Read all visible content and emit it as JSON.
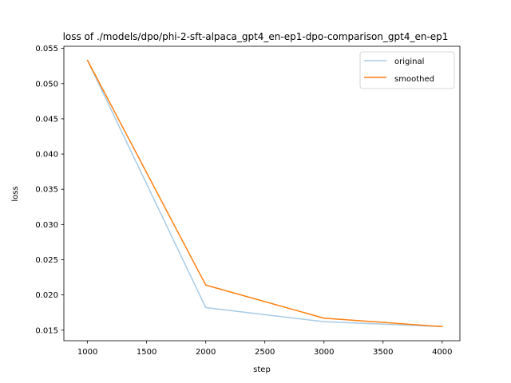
{
  "chart_data": {
    "type": "line",
    "title": "loss of ./models/dpo/phi-2-sft-alpaca_gpt4_en-ep1-dpo-comparison_gpt4_en-ep1",
    "xlabel": "step",
    "ylabel": "loss",
    "x": [
      1000,
      2000,
      3000,
      4000
    ],
    "series": [
      {
        "name": "original",
        "color": "#a6cbe6",
        "values": [
          0.0533,
          0.0182,
          0.0162,
          0.0155
        ]
      },
      {
        "name": "smoothed",
        "color": "#ff7f0e",
        "values": [
          0.0533,
          0.0214,
          0.0167,
          0.0155
        ]
      }
    ],
    "xlim": [
      800,
      4150
    ],
    "ylim": [
      0.0135,
      0.0553
    ],
    "xticks": [
      1000,
      1500,
      2000,
      2500,
      3000,
      3500,
      4000
    ],
    "yticks": [
      0.015,
      0.02,
      0.025,
      0.03,
      0.035,
      0.04,
      0.045,
      0.05,
      0.055
    ],
    "ytick_labels": [
      "0.015",
      "0.020",
      "0.025",
      "0.030",
      "0.035",
      "0.040",
      "0.045",
      "0.050",
      "0.055"
    ],
    "grid": false,
    "legend": "top-right"
  }
}
